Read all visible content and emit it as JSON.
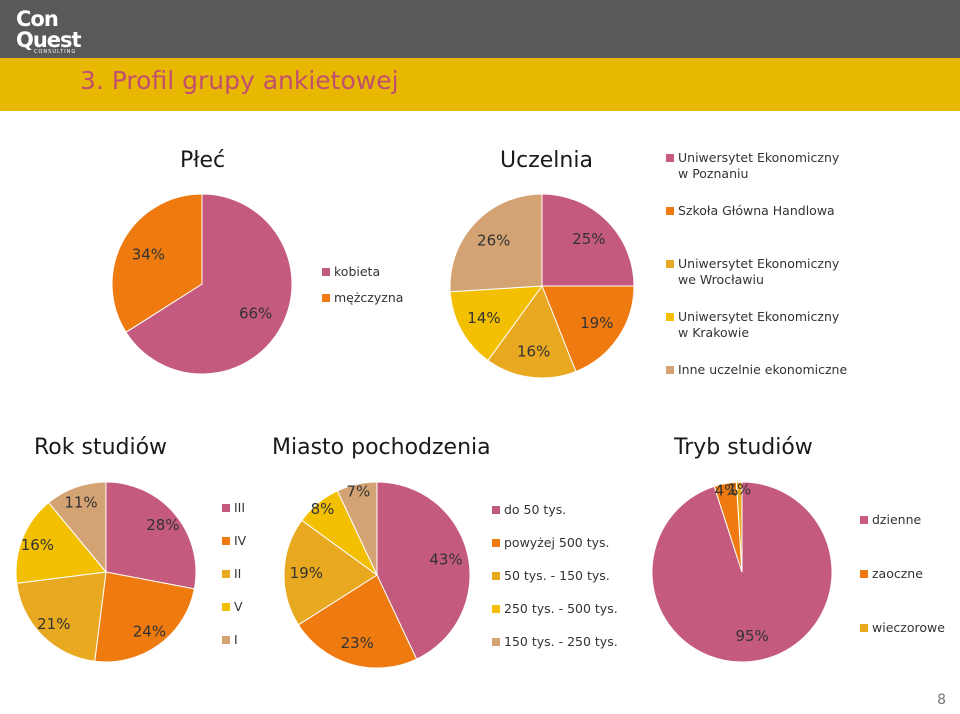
{
  "logo": {
    "line1": "Con",
    "line2": "Quest",
    "line3": "CONSULTING"
  },
  "page_title": "3. Profil grupy ankietowej",
  "page_number": "8",
  "colors": {
    "pink": "#c45a7e",
    "orange": "#ef7b10",
    "gold": "#e8a820",
    "yellow": "#f2c000",
    "tan": "#d4a373",
    "top_bar": "#595959",
    "title_bar": "#e8b800",
    "title_text": "#c0506e"
  },
  "chart_data": [
    {
      "id": "plec",
      "type": "pie",
      "title": "Płeć",
      "slices": [
        {
          "name": "kobieta",
          "value": 66,
          "label": "66%",
          "color": "#c45a7e"
        },
        {
          "name": "mężczyzna",
          "value": 34,
          "label": "34%",
          "color": "#ef7b10"
        }
      ],
      "legend": "right"
    },
    {
      "id": "uczelnia",
      "type": "pie",
      "title": "Uczelnia",
      "slices": [
        {
          "name": "Uniwersytet Ekonomiczny\nw Poznaniu",
          "value": 25,
          "label": "25%",
          "color": "#c45a7e"
        },
        {
          "name": "Szkoła Główna Handlowa",
          "value": 19,
          "label": "19%",
          "color": "#ef7b10"
        },
        {
          "name": "Uniwersytet Ekonomiczny\nwe Wrocławiu",
          "value": 16,
          "label": "16%",
          "color": "#e8a820"
        },
        {
          "name": "Uniwersytet Ekonomiczny\nw Krakowie",
          "value": 14,
          "label": "14%",
          "color": "#f2c000"
        },
        {
          "name": "Inne uczelnie ekonomiczne",
          "value": 26,
          "label": "26%",
          "color": "#d4a373"
        }
      ],
      "legend": "right"
    },
    {
      "id": "rok",
      "type": "pie",
      "title": "Rok studiów",
      "slices": [
        {
          "name": "III",
          "value": 28,
          "label": "28%",
          "color": "#c45a7e"
        },
        {
          "name": "IV",
          "value": 24,
          "label": "24%",
          "color": "#ef7b10"
        },
        {
          "name": "II",
          "value": 21,
          "label": "21%",
          "color": "#e8a820"
        },
        {
          "name": "V",
          "value": 16,
          "label": "16%",
          "color": "#f2c000"
        },
        {
          "name": "I",
          "value": 11,
          "label": "11%",
          "color": "#d4a373"
        }
      ],
      "legend": "right"
    },
    {
      "id": "miasto",
      "type": "pie",
      "title": "Miasto pochodzenia",
      "slices": [
        {
          "name": "do 50 tys.",
          "value": 43,
          "label": "43%",
          "color": "#c45a7e"
        },
        {
          "name": "powyżej 500 tys.",
          "value": 23,
          "label": "23%",
          "color": "#ef7b10"
        },
        {
          "name": "50 tys. - 150 tys.",
          "value": 19,
          "label": "19%",
          "color": "#e8a820"
        },
        {
          "name": "250 tys. - 500 tys.",
          "value": 8,
          "label": "8%",
          "color": "#f2c000"
        },
        {
          "name": "150 tys. - 250 tys.",
          "value": 7,
          "label": "7%",
          "color": "#d4a373"
        }
      ],
      "legend": "right"
    },
    {
      "id": "tryb",
      "type": "pie",
      "title": "Tryb studiów",
      "slices": [
        {
          "name": "dzienne",
          "value": 95,
          "label": "95%",
          "color": "#c45a7e"
        },
        {
          "name": "zaoczne",
          "value": 4,
          "label": "4%",
          "color": "#ef7b10"
        },
        {
          "name": "wieczorowe",
          "value": 1,
          "label": "1%",
          "color": "#e8a820"
        }
      ],
      "legend": "right"
    }
  ]
}
